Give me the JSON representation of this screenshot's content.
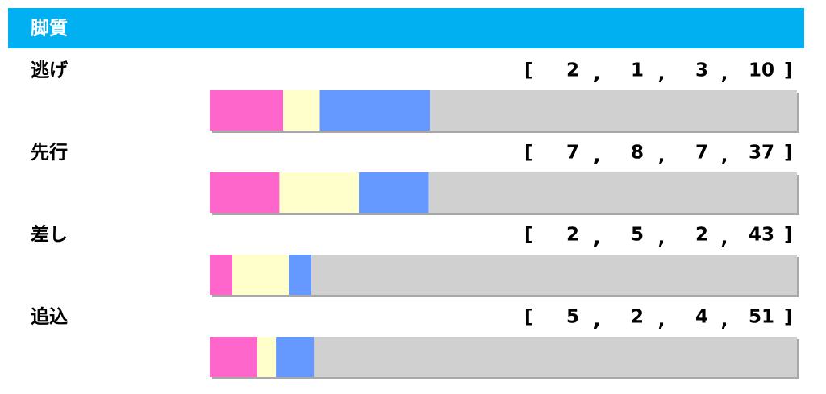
{
  "header": {
    "title": "脚質"
  },
  "open": "[",
  "separator": ",",
  "close": "]",
  "colors": [
    "#ff66cc",
    "#ffffcc",
    "#6699ff",
    "#d0d0d0"
  ],
  "rows": [
    {
      "label": "逃げ",
      "values": [
        2,
        1,
        3,
        10
      ]
    },
    {
      "label": "先行",
      "values": [
        7,
        8,
        7,
        37
      ]
    },
    {
      "label": "差し",
      "values": [
        2,
        5,
        2,
        43
      ]
    },
    {
      "label": "追込",
      "values": [
        5,
        2,
        4,
        51
      ]
    }
  ]
}
